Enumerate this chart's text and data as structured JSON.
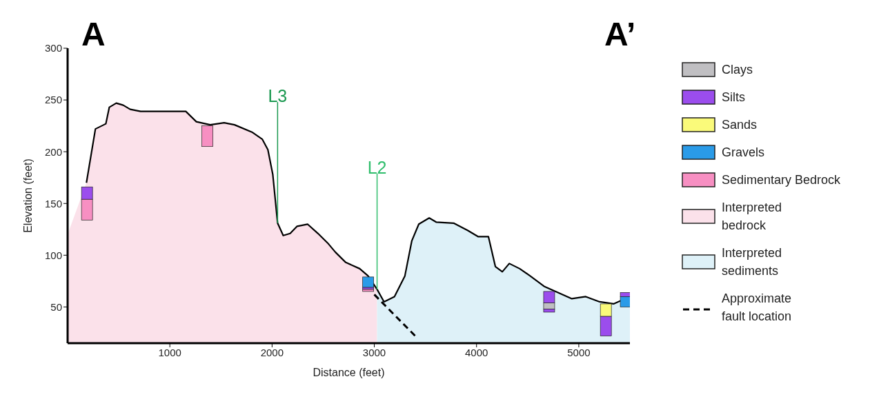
{
  "chart_data": {
    "type": "line",
    "xlabel": "Distance (feet)",
    "ylabel": "Elevation (feet)",
    "xlim": [
      0,
      5500
    ],
    "ylim": [
      15,
      300
    ],
    "xticks": [
      1000,
      2000,
      3000,
      4000,
      5000
    ],
    "yticks": [
      50,
      100,
      150,
      200,
      250,
      300
    ],
    "legend": "right",
    "annotations": [
      "A",
      "A’"
    ],
    "series": [
      {
        "type": "bar",
        "name": "Clays",
        "color": "#c0bfc2",
        "x": [
          4710
        ],
        "base": [
          48
        ],
        "values": [
          6
        ]
      },
      {
        "type": "bar",
        "name": "Silts",
        "color": "#9b4ded",
        "x": [
          190,
          2940,
          4710,
          5265,
          5460
        ],
        "base": [
          154,
          67,
          54,
          22,
          60
        ],
        "values": [
          12,
          2,
          11,
          19,
          4
        ]
      },
      {
        "type": "bar",
        "name": "Sands",
        "color": "#fafa7a",
        "x": [
          5265
        ],
        "base": [
          41
        ],
        "values": [
          12
        ]
      },
      {
        "type": "bar",
        "name": "Gravels",
        "color": "#2a9be8",
        "x": [
          2940,
          5460
        ],
        "base": [
          69,
          50
        ],
        "values": [
          10,
          10
        ]
      },
      {
        "type": "bar",
        "name": "Sedimentary Bedrock",
        "color": "#f78fc2",
        "x": [
          190,
          1367,
          2940
        ],
        "base": [
          134,
          205,
          65
        ],
        "values": [
          20,
          20,
          2
        ]
      },
      {
        "type": "area",
        "name": "Interpreted bedrock",
        "color": "#fbe1ea",
        "x": [
          0,
          184,
          272,
          374,
          408,
          476,
          544,
          612,
          714,
          918,
          1156,
          1259,
          1395,
          1531,
          1633,
          1803,
          1905,
          1959,
          2007,
          2054,
          2109,
          2177,
          2245,
          2347,
          2449,
          2551,
          2619,
          2721,
          2857,
          2939,
          3027
        ],
        "values": [
          120,
          170,
          222,
          227,
          243,
          247,
          245,
          241,
          239,
          239,
          239,
          229,
          226,
          228,
          226,
          219,
          212,
          202,
          178,
          131,
          119,
          121,
          128,
          130,
          121,
          111,
          103,
          93,
          87,
          80,
          67
        ]
      },
      {
        "type": "area",
        "name": "Interpreted sediments",
        "color": "#def1f8",
        "x": [
          3027,
          3095,
          3197,
          3299,
          3367,
          3435,
          3537,
          3605,
          3776,
          3912,
          4014,
          4116,
          4184,
          4252,
          4320,
          4422,
          4524,
          4660,
          4796,
          4932,
          5068,
          5204,
          5340,
          5500
        ],
        "values": [
          67,
          55,
          60,
          80,
          114,
          130,
          136,
          132,
          131,
          124,
          118,
          118,
          89,
          84,
          92,
          87,
          80,
          70,
          64,
          58,
          60,
          55,
          53,
          60
        ]
      },
      {
        "color": "#000000",
        "x": [
          184,
          272,
          374,
          408,
          476,
          544,
          612,
          714,
          918,
          1156,
          1259,
          1395,
          1531,
          1633,
          1803,
          1905,
          1959,
          2007,
          2054,
          2109,
          2177,
          2245,
          2347,
          2449,
          2551,
          2619,
          2721,
          2857,
          2939,
          3027,
          3095,
          3197,
          3299,
          3367,
          3435,
          3537,
          3605,
          3776,
          3912,
          4014,
          4116,
          4184,
          4252,
          4320,
          4422,
          4524,
          4660,
          4796,
          4932,
          5068,
          5204,
          5340,
          5500
        ],
        "values": [
          170,
          222,
          227,
          243,
          247,
          245,
          241,
          239,
          239,
          239,
          229,
          226,
          228,
          226,
          219,
          212,
          202,
          178,
          131,
          119,
          121,
          128,
          130,
          121,
          111,
          103,
          93,
          87,
          80,
          67,
          55,
          60,
          80,
          114,
          130,
          136,
          132,
          131,
          124,
          118,
          118,
          89,
          84,
          92,
          87,
          80,
          70,
          64,
          58,
          60,
          55,
          53,
          60
        ]
      },
      {
        "type": "line",
        "name": "Approximate fault location",
        "color": "#000000",
        "line_style": "dashed",
        "x": [
          3000,
          3400
        ],
        "values": [
          62,
          22
        ]
      },
      {
        "type": "line",
        "name": "L3",
        "color": "#1a9850",
        "x": [
          2054,
          2054
        ],
        "values": [
          131,
          248
        ]
      },
      {
        "type": "line",
        "name": "L2",
        "color": "#2ebd6b",
        "x": [
          3027,
          3027
        ],
        "values": [
          67,
          179
        ]
      },
      {
        "type": "bar",
        "color": "#9b4ded",
        "x": [
          4710
        ],
        "base": [
          45
        ],
        "values": [
          3
        ]
      }
    ]
  }
}
